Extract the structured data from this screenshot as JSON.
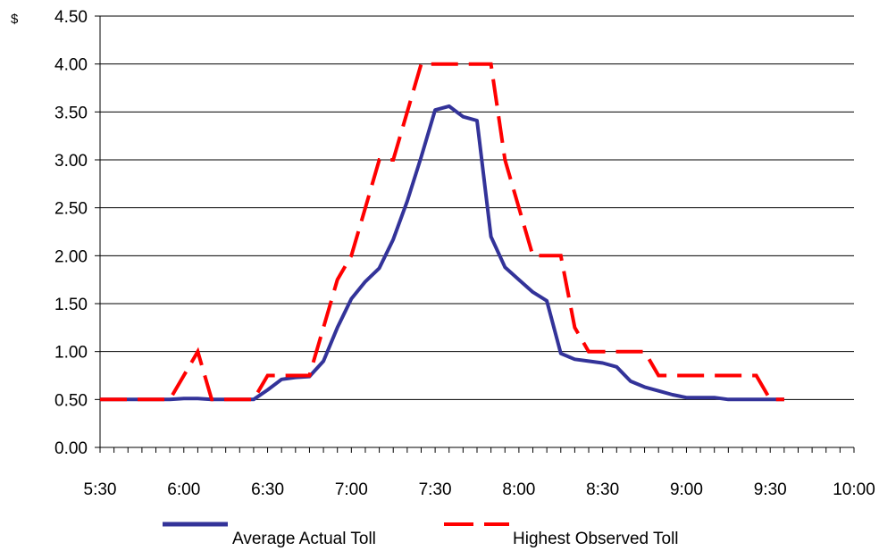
{
  "chart_data": {
    "type": "line",
    "title": "",
    "xlabel": "",
    "ylabel": "$",
    "ylim": [
      0,
      4.5
    ],
    "y_ticks": [
      "0.00",
      "0.50",
      "1.00",
      "1.50",
      "2.00",
      "2.50",
      "3.00",
      "3.50",
      "4.00",
      "4.50"
    ],
    "x_tick_labels": [
      "5:30",
      "6:00",
      "6:30",
      "7:00",
      "7:30",
      "8:00",
      "8:30",
      "9:00",
      "9:30",
      "10:00"
    ],
    "x_range": [
      "5:30",
      "10:00"
    ],
    "x_minor_ticks_per_major": 6,
    "grid": "horizontal",
    "legend_position": "bottom",
    "series": [
      {
        "name": "Average Actual Toll",
        "color": "#333399",
        "style": "solid",
        "points": [
          [
            "5:30",
            0.5
          ],
          [
            "5:55",
            0.5
          ],
          [
            "6:00",
            0.51
          ],
          [
            "6:05",
            0.51
          ],
          [
            "6:10",
            0.5
          ],
          [
            "6:25",
            0.5
          ],
          [
            "6:30",
            0.6
          ],
          [
            "6:35",
            0.71
          ],
          [
            "6:40",
            0.73
          ],
          [
            "6:45",
            0.74
          ],
          [
            "6:50",
            0.9
          ],
          [
            "6:55",
            1.25
          ],
          [
            "7:00",
            1.55
          ],
          [
            "7:05",
            1.73
          ],
          [
            "7:10",
            1.87
          ],
          [
            "7:15",
            2.17
          ],
          [
            "7:20",
            2.57
          ],
          [
            "7:25",
            3.03
          ],
          [
            "7:30",
            3.52
          ],
          [
            "7:35",
            3.56
          ],
          [
            "7:40",
            3.45
          ],
          [
            "7:45",
            3.41
          ],
          [
            "7:50",
            2.2
          ],
          [
            "7:55",
            1.88
          ],
          [
            "8:00",
            1.75
          ],
          [
            "8:05",
            1.62
          ],
          [
            "8:10",
            1.53
          ],
          [
            "8:15",
            0.98
          ],
          [
            "8:20",
            0.92
          ],
          [
            "8:25",
            0.9
          ],
          [
            "8:30",
            0.88
          ],
          [
            "8:35",
            0.84
          ],
          [
            "8:40",
            0.69
          ],
          [
            "8:45",
            0.63
          ],
          [
            "8:50",
            0.59
          ],
          [
            "8:55",
            0.55
          ],
          [
            "9:00",
            0.52
          ],
          [
            "9:10",
            0.52
          ],
          [
            "9:15",
            0.5
          ],
          [
            "9:30",
            0.5
          ],
          [
            "9:35",
            0.5
          ]
        ]
      },
      {
        "name": "Highest Observed Toll",
        "color": "#ff0000",
        "style": "dashed",
        "points": [
          [
            "5:30",
            0.5
          ],
          [
            "5:55",
            0.5
          ],
          [
            "6:00",
            0.75
          ],
          [
            "6:05",
            1.0
          ],
          [
            "6:10",
            0.5
          ],
          [
            "6:25",
            0.5
          ],
          [
            "6:30",
            0.75
          ],
          [
            "6:45",
            0.75
          ],
          [
            "6:50",
            1.25
          ],
          [
            "6:55",
            1.75
          ],
          [
            "7:00",
            2.0
          ],
          [
            "7:05",
            2.5
          ],
          [
            "7:10",
            3.0
          ],
          [
            "7:15",
            3.0
          ],
          [
            "7:20",
            3.5
          ],
          [
            "7:25",
            4.0
          ],
          [
            "7:50",
            4.0
          ],
          [
            "7:55",
            3.0
          ],
          [
            "8:00",
            2.5
          ],
          [
            "8:05",
            2.0
          ],
          [
            "8:15",
            2.0
          ],
          [
            "8:20",
            1.25
          ],
          [
            "8:25",
            1.0
          ],
          [
            "8:45",
            1.0
          ],
          [
            "8:50",
            0.75
          ],
          [
            "9:25",
            0.75
          ],
          [
            "9:30",
            0.5
          ],
          [
            "9:35",
            0.5
          ]
        ]
      }
    ]
  }
}
